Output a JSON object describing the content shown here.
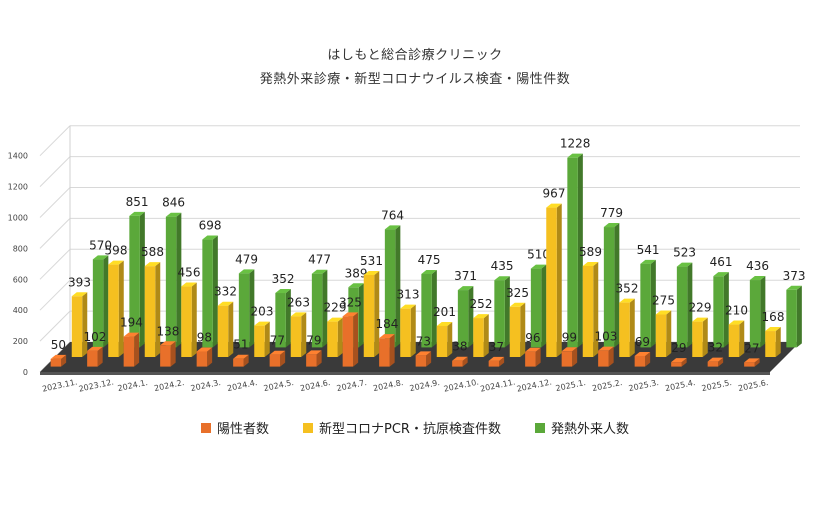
{
  "chart_data": {
    "type": "bar",
    "title": "はしもと総合診療クリニック",
    "subtitle": "発熱外来診療・新型コロナウイルス検査・陽性件数",
    "categories": [
      "2023.11.",
      "2023.12.",
      "2024.1.",
      "2024.2.",
      "2024.3.",
      "2024.4.",
      "2024.5.",
      "2024.6.",
      "2024.7.",
      "2024.8.",
      "2024.9.",
      "2024.10.",
      "2024.11.",
      "2024.12.",
      "2025.1.",
      "2025.2.",
      "2025.3.",
      "2025.4.",
      "2025.5.",
      "2025.6."
    ],
    "series": [
      {
        "name": "陽性者数",
        "color": "#E8702A",
        "values": [
          50,
          102,
          194,
          138,
          98,
          51,
          77,
          79,
          325,
          184,
          73,
          38,
          37,
          96,
          99,
          103,
          69,
          29,
          32,
          27
        ]
      },
      {
        "name": "新型コロナPCR・抗原検査件数",
        "color": "#F5C020",
        "values": [
          393,
          598,
          588,
          456,
          332,
          203,
          263,
          229,
          531,
          313,
          201,
          252,
          325,
          967,
          589,
          352,
          275,
          229,
          210,
          168
        ]
      },
      {
        "name": "発熱外来人数",
        "color": "#5BA83A",
        "values": [
          570,
          851,
          846,
          698,
          479,
          352,
          477,
          389,
          764,
          475,
          371,
          435,
          510,
          1228,
          779,
          541,
          523,
          461,
          436,
          373
        ]
      }
    ],
    "y_ticks": [
      0,
      200,
      400,
      600,
      800,
      1000,
      1200,
      1400
    ],
    "ylim": [
      0,
      1400
    ],
    "grid": true,
    "legend_position": "bottom"
  }
}
